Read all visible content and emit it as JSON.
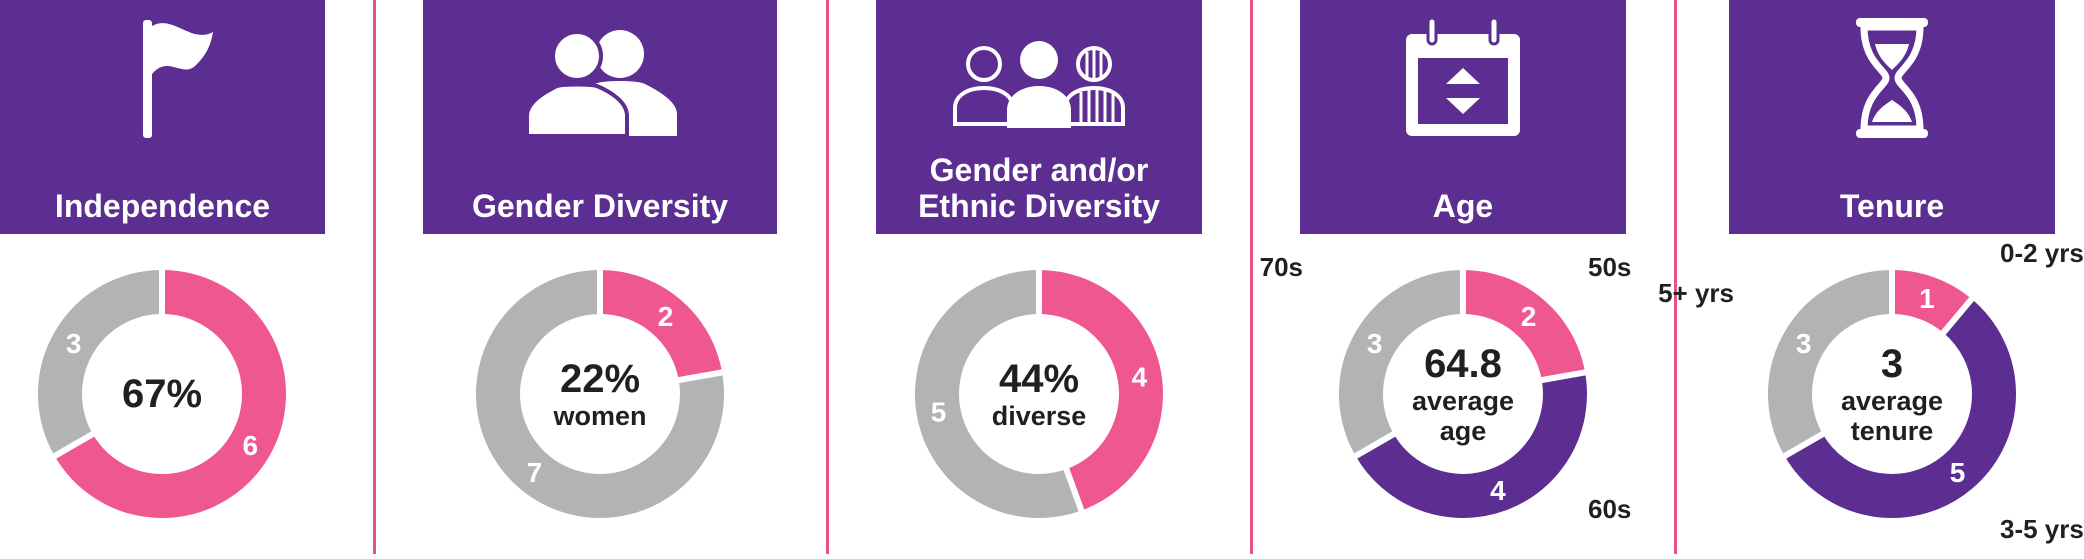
{
  "colors": {
    "purple": "#5c2e91",
    "pink": "#ef5790",
    "gray": "#b3b3b6",
    "divider": "#e94f8a"
  },
  "panels": [
    {
      "title_lines": [
        "Independence"
      ],
      "icon": "flag-icon"
    },
    {
      "title_lines": [
        "Gender Diversity"
      ],
      "icon": "two-people-icon"
    },
    {
      "title_lines": [
        "Gender and/or",
        "Ethnic Diversity"
      ],
      "icon": "three-people-icon"
    },
    {
      "title_lines": [
        "Age"
      ],
      "icon": "calendar-icon"
    },
    {
      "title_lines": [
        "Tenure"
      ],
      "icon": "hourglass-icon"
    }
  ],
  "chart_data": [
    {
      "type": "pie",
      "title": "Independence",
      "slices": [
        {
          "label": "",
          "value": 6,
          "color": "#ef5790"
        },
        {
          "label": "",
          "value": 3,
          "color": "#b3b3b6"
        }
      ],
      "center": {
        "main": "67%",
        "sub": []
      }
    },
    {
      "type": "pie",
      "title": "Gender Diversity",
      "slices": [
        {
          "label": "",
          "value": 2,
          "color": "#ef5790"
        },
        {
          "label": "",
          "value": 7,
          "color": "#b3b3b6"
        }
      ],
      "center": {
        "main": "22%",
        "sub": [
          "women"
        ]
      }
    },
    {
      "type": "pie",
      "title": "Gender and/or Ethnic Diversity",
      "slices": [
        {
          "label": "",
          "value": 4,
          "color": "#ef5790"
        },
        {
          "label": "",
          "value": 5,
          "color": "#b3b3b6"
        }
      ],
      "center": {
        "main": "44%",
        "sub": [
          "diverse"
        ]
      }
    },
    {
      "type": "pie",
      "title": "Age",
      "slices": [
        {
          "label": "50s",
          "value": 2,
          "color": "#ef5790"
        },
        {
          "label": "60s",
          "value": 4,
          "color": "#5c2e91"
        },
        {
          "label": "70s",
          "value": 3,
          "color": "#b3b3b6"
        }
      ],
      "center": {
        "main": "64.8",
        "sub": [
          "average",
          "age"
        ]
      }
    },
    {
      "type": "pie",
      "title": "Tenure",
      "slices": [
        {
          "label": "0-2 yrs",
          "value": 1,
          "color": "#ef5790"
        },
        {
          "label": "3-5 yrs",
          "value": 5,
          "color": "#5c2e91"
        },
        {
          "label": "5+ yrs",
          "value": 3,
          "color": "#b3b3b6"
        }
      ],
      "center": {
        "main": "3",
        "sub": [
          "average",
          "tenure"
        ]
      }
    }
  ]
}
